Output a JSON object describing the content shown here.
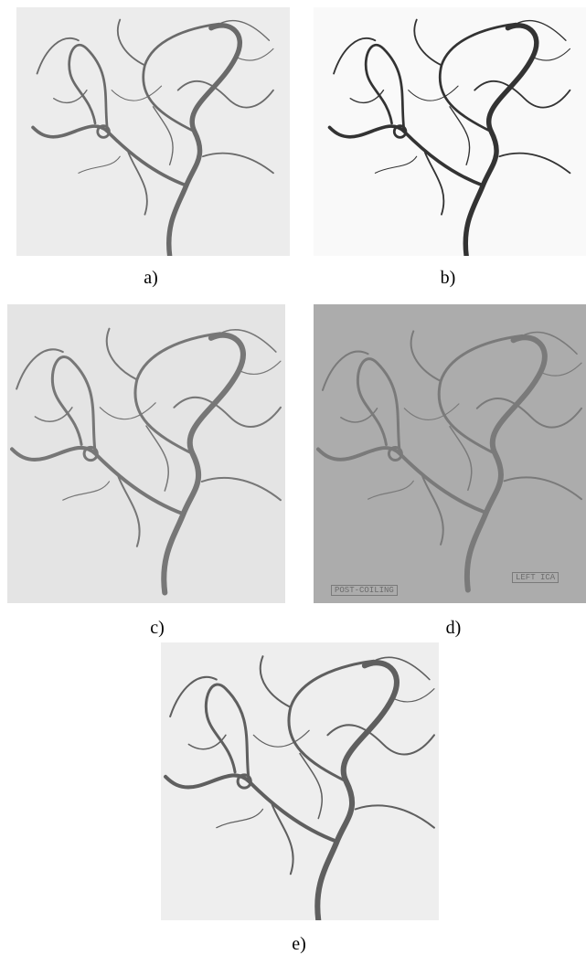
{
  "panels": [
    {
      "label": "a)"
    },
    {
      "label": "b)"
    },
    {
      "label": "c)"
    },
    {
      "label": "d)",
      "overlays": [
        "POST-COILING",
        "LEFT ICA"
      ]
    },
    {
      "label": "e)"
    }
  ]
}
